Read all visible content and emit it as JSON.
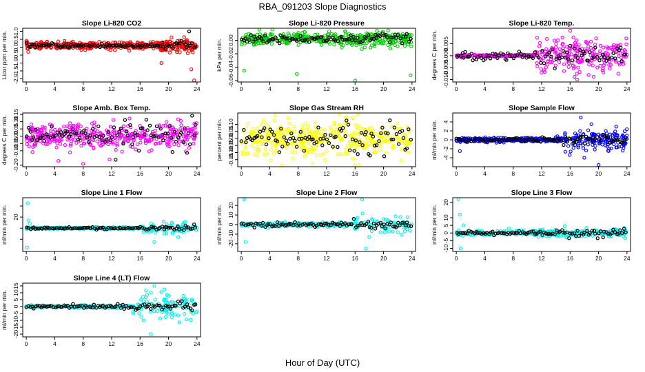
{
  "page": {
    "title": "RBA_091203  Slope Diagnostics",
    "xlabel": "Hour of Day (UTC)"
  },
  "chart_data": [
    {
      "type": "scatter",
      "title": "Slope Li-820 CO2",
      "ylabel": "Licor ppm per min.",
      "color": "#ff0000",
      "ylim": [
        -2.2,
        1.2
      ],
      "yticks": [
        -2,
        -1.5,
        -1,
        -0.5,
        0,
        0.5,
        1
      ],
      "yticklabels": [
        "-2.0",
        "-1.5",
        "-1.0",
        "-0.5",
        "0.0",
        "0.5",
        "1.0"
      ],
      "xlim": [
        -0.5,
        24.5
      ],
      "xticks": [
        0,
        4,
        8,
        12,
        16,
        20,
        24
      ],
      "base": 0.1,
      "noise": 0.15,
      "noise_late": 0.25,
      "late_start": 19,
      "n": 420,
      "outliers": [
        [
          19,
          -1.0
        ],
        [
          23.2,
          -1.4
        ],
        [
          23.6,
          -2.1
        ],
        [
          22.9,
          1.0
        ]
      ],
      "black_spread": 0.12
    },
    {
      "type": "scatter",
      "title": "Slope Li-820 Pressure",
      "ylabel": "kPa per min.",
      "color": "#00cc00",
      "ylim": [
        -0.062,
        0.018
      ],
      "yticks": [
        -0.06,
        -0.04,
        -0.02,
        0
      ],
      "yticklabels": [
        "-0.06",
        "-0.04",
        "-0.02",
        "0.00"
      ],
      "xlim": [
        -0.5,
        24.5
      ],
      "xticks": [
        0,
        4,
        8,
        12,
        16,
        20,
        24
      ],
      "base": 0.002,
      "noise": 0.006,
      "noise_late": 0.007,
      "late_start": 15,
      "n": 420,
      "outliers": [
        [
          0.4,
          -0.045
        ],
        [
          7.8,
          -0.05
        ],
        [
          16.0,
          -0.06
        ],
        [
          23.8,
          -0.052
        ]
      ],
      "black_spread": 0.004
    },
    {
      "type": "scatter",
      "title": "Slope Li-820 Temp.",
      "ylabel": "degrees C per min.",
      "color": "#ff00ff",
      "ylim": [
        -0.011,
        0.0115
      ],
      "yticks": [
        -0.01,
        -0.005,
        0,
        0.005
      ],
      "yticklabels": [
        "-0.010",
        "-0.005",
        "0.000",
        "0.005"
      ],
      "xlim": [
        -0.5,
        24.5
      ],
      "xticks": [
        0,
        4,
        8,
        12,
        16,
        20,
        24
      ],
      "base": 0,
      "noise": 0.0003,
      "noise_late": 0.0045,
      "late_start": 11,
      "n": 420,
      "outliers": [
        [
          16,
          0.0105
        ],
        [
          17.0,
          -0.01
        ]
      ],
      "black_spread": 0.0015
    },
    {
      "type": "scatter",
      "title": "Slope Amb. Box Temp.",
      "ylabel": "degrees C per min.",
      "color": "#ff00ff",
      "ylim": [
        -0.21,
        0.16
      ],
      "yticks": [
        -0.2,
        -0.1,
        -0.05,
        0,
        0.05,
        0.1,
        0.15
      ],
      "yticklabels": [
        "-0.20",
        "-0.10",
        "-0.05",
        "0.00",
        "0.05",
        "0.10",
        "0.15"
      ],
      "xlim": [
        -0.5,
        24.5
      ],
      "xticks": [
        0,
        4,
        8,
        12,
        16,
        20,
        24
      ],
      "base": 0,
      "noise": 0.06,
      "noise_late": 0.06,
      "late_start": 12,
      "n": 420,
      "outliers": [
        [
          4.5,
          -0.17
        ],
        [
          8,
          -0.19
        ],
        [
          11.7,
          -0.16
        ]
      ],
      "black_spread": 0.045
    },
    {
      "type": "scatter",
      "title": "Slope Gas Stream RH",
      "ylabel": "percent per min.",
      "color": "#ffff00",
      "ylim": [
        -0.2,
        0.18
      ],
      "yticks": [
        -0.15,
        -0.1,
        -0.05,
        0,
        0.05,
        0.1
      ],
      "yticklabels": [
        "-0.15",
        "-0.10",
        "-0.05",
        "0.00",
        "0.05",
        "0.10"
      ],
      "xlim": [
        -0.5,
        24.5
      ],
      "xticks": [
        0,
        4,
        8,
        12,
        16,
        20,
        24
      ],
      "base": 0,
      "noise": 0.08,
      "noise_late": 0.08,
      "late_start": 12,
      "n": 420,
      "outliers": [
        [
          10,
          -0.18
        ],
        [
          16,
          -0.19
        ]
      ],
      "black_spread": 0.07
    },
    {
      "type": "scatter",
      "title": "Slope Sample Flow",
      "ylabel": "ml/min per min.",
      "color": "#0000ff",
      "ylim": [
        -6,
        6
      ],
      "yticks": [
        -4,
        -2,
        0,
        2,
        4
      ],
      "yticklabels": [
        "-4",
        "-2",
        "0",
        "2",
        "4"
      ],
      "xlim": [
        -0.5,
        24.5
      ],
      "xticks": [
        0,
        4,
        8,
        12,
        16,
        20,
        24
      ],
      "base": 0,
      "noise": 0.3,
      "noise_late": 1.5,
      "late_start": 15,
      "n": 420,
      "outliers": [
        [
          17.5,
          5
        ],
        [
          18,
          -4
        ],
        [
          20,
          -5.6
        ],
        [
          19,
          3.5
        ],
        [
          0.5,
          -2.5
        ]
      ],
      "black_spread": 0.4
    },
    {
      "type": "scatter",
      "title": "Slope Line 1 Flow",
      "ylabel": "ml/min per min.",
      "color": "#00eeee",
      "ylim": [
        -42,
        55
      ],
      "yticks": [
        -20,
        0,
        20,
        40
      ],
      "yticklabels": [
        "",
        "",
        "20",
        ""
      ],
      "xlim": [
        -0.5,
        24.5
      ],
      "xticks": [
        0,
        4,
        8,
        12,
        16,
        20,
        24
      ],
      "base": 0,
      "noise": 1.2,
      "noise_late": 7,
      "late_start": 16,
      "n": 260,
      "outliers": [
        [
          0.2,
          45
        ],
        [
          0.1,
          -35
        ],
        [
          0.3,
          14
        ],
        [
          0.5,
          8
        ],
        [
          18,
          -25
        ]
      ],
      "black_spread": 1.5
    },
    {
      "type": "scatter",
      "title": "Slope Line 2 Flow",
      "ylabel": "ml/min per min.",
      "color": "#00eeee",
      "ylim": [
        -28,
        28
      ],
      "yticks": [
        -20,
        -10,
        0,
        10,
        20
      ],
      "yticklabels": [
        "-20",
        "-10",
        "0",
        "10",
        "20"
      ],
      "xlim": [
        -0.5,
        24.5
      ],
      "xticks": [
        0,
        4,
        8,
        12,
        16,
        20,
        24
      ],
      "base": 0,
      "noise": 1.5,
      "noise_late": 6,
      "late_start": 15.5,
      "n": 260,
      "outliers": [
        [
          0.4,
          26
        ],
        [
          0.6,
          -18
        ],
        [
          17,
          26
        ],
        [
          17.5,
          -25
        ],
        [
          18,
          -13
        ]
      ],
      "black_spread": 2
    },
    {
      "type": "scatter",
      "title": "Slope Line 3 Flow",
      "ylabel": "ml/min per min.",
      "color": "#00eeee",
      "ylim": [
        -12,
        23
      ],
      "yticks": [
        -10,
        -5,
        0,
        5,
        10,
        20
      ],
      "yticklabels": [
        "-10",
        "-5",
        "0",
        "5",
        "10",
        "20"
      ],
      "xlim": [
        -0.5,
        24.5
      ],
      "xticks": [
        0,
        4,
        8,
        12,
        16,
        20,
        24
      ],
      "base": 0,
      "noise": 1.2,
      "noise_late": 2,
      "late_start": 14,
      "n": 300,
      "outliers": [
        [
          0.3,
          22
        ],
        [
          0.5,
          12
        ],
        [
          0.6,
          -10
        ],
        [
          1,
          5
        ]
      ],
      "black_spread": 1.2
    },
    {
      "type": "scatter",
      "title": "Slope Line 4 (LT) Flow",
      "ylabel": "ml/min per min.",
      "color": "#00eeee",
      "ylim": [
        -22,
        17
      ],
      "yticks": [
        -20,
        -15,
        -10,
        -5,
        0,
        5,
        10,
        15
      ],
      "yticklabels": [
        "-20",
        "-15",
        "-10",
        "-5",
        "0",
        "5",
        "10",
        "15"
      ],
      "xlim": [
        -0.5,
        24.5
      ],
      "xticks": [
        0,
        4,
        8,
        12,
        16,
        20,
        24
      ],
      "base": 0,
      "noise": 0.6,
      "noise_late": 6,
      "late_start": 15,
      "n": 260,
      "outliers": [
        [
          18,
          15
        ],
        [
          17.5,
          -20
        ],
        [
          16.5,
          -10
        ]
      ],
      "black_spread": 1.2
    }
  ]
}
